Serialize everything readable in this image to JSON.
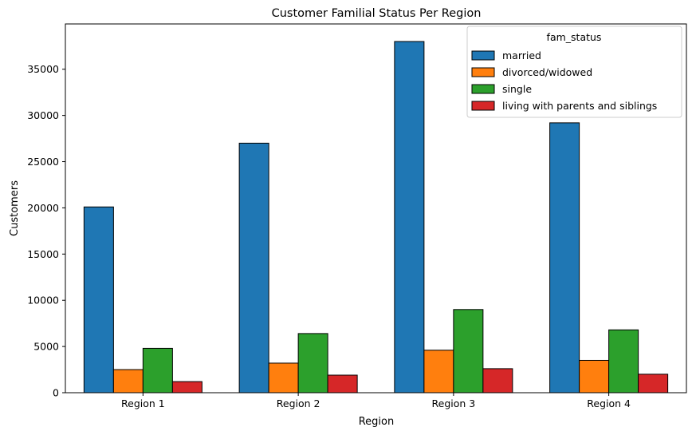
{
  "chart_data": {
    "type": "bar",
    "title": "Customer Familial Status Per Region",
    "xlabel": "Region",
    "ylabel": "Customers",
    "categories": [
      "Region 1",
      "Region 2",
      "Region 3",
      "Region 4"
    ],
    "yticks": [
      0,
      5000,
      10000,
      15000,
      20000,
      25000,
      30000,
      35000
    ],
    "ylim": [
      0,
      39900
    ],
    "grid": false,
    "legend": {
      "title": "fam_status",
      "placement": "top-right"
    },
    "series": [
      {
        "name": "married",
        "color": "#1f77b4",
        "values": [
          20100,
          27000,
          38000,
          29200
        ]
      },
      {
        "name": "divorced/widowed",
        "color": "#ff7f0e",
        "values": [
          2500,
          3200,
          4600,
          3500
        ]
      },
      {
        "name": "single",
        "color": "#2ca02c",
        "values": [
          4800,
          6400,
          9000,
          6800
        ]
      },
      {
        "name": "living with parents and siblings",
        "color": "#d62728",
        "values": [
          1200,
          1900,
          2600,
          2000
        ]
      }
    ]
  }
}
